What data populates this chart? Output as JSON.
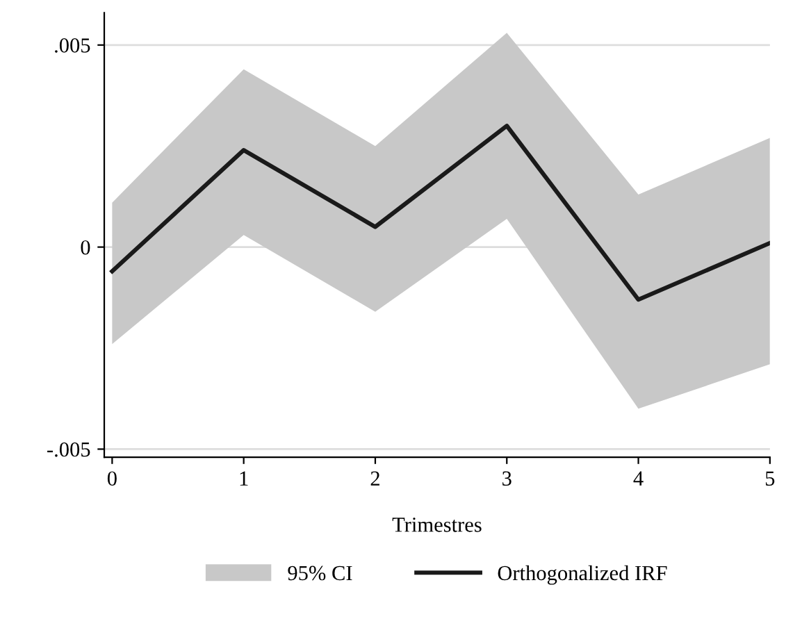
{
  "chart_data": {
    "type": "line",
    "xlabel": "Trimestres",
    "x": [
      0,
      1,
      2,
      3,
      4,
      5
    ],
    "series": [
      {
        "name": "Orthogonalized IRF",
        "color": "#1a1a1a",
        "values": [
          -0.0006,
          0.0024,
          0.0005,
          0.003,
          -0.0013,
          0.0001
        ],
        "lower": [
          -0.0024,
          0.0003,
          -0.0016,
          0.0007,
          -0.004,
          -0.0029
        ],
        "upper": [
          0.0011,
          0.0044,
          0.0025,
          0.0053,
          0.0013,
          0.0027
        ]
      }
    ],
    "annotations": [
      "95% CI"
    ],
    "xlim": [
      -0.06,
      5
    ],
    "ylim": [
      -0.0052,
      0.0058
    ],
    "xticks": [
      0,
      1,
      2,
      3,
      4,
      5
    ],
    "yticks": [
      {
        "value": -0.005,
        "label": "-.005"
      },
      0,
      {
        "value": 0.005,
        "label": ".005"
      }
    ],
    "grid": "y",
    "legend": "bottom",
    "line_style": "solid",
    "marker": "none"
  }
}
